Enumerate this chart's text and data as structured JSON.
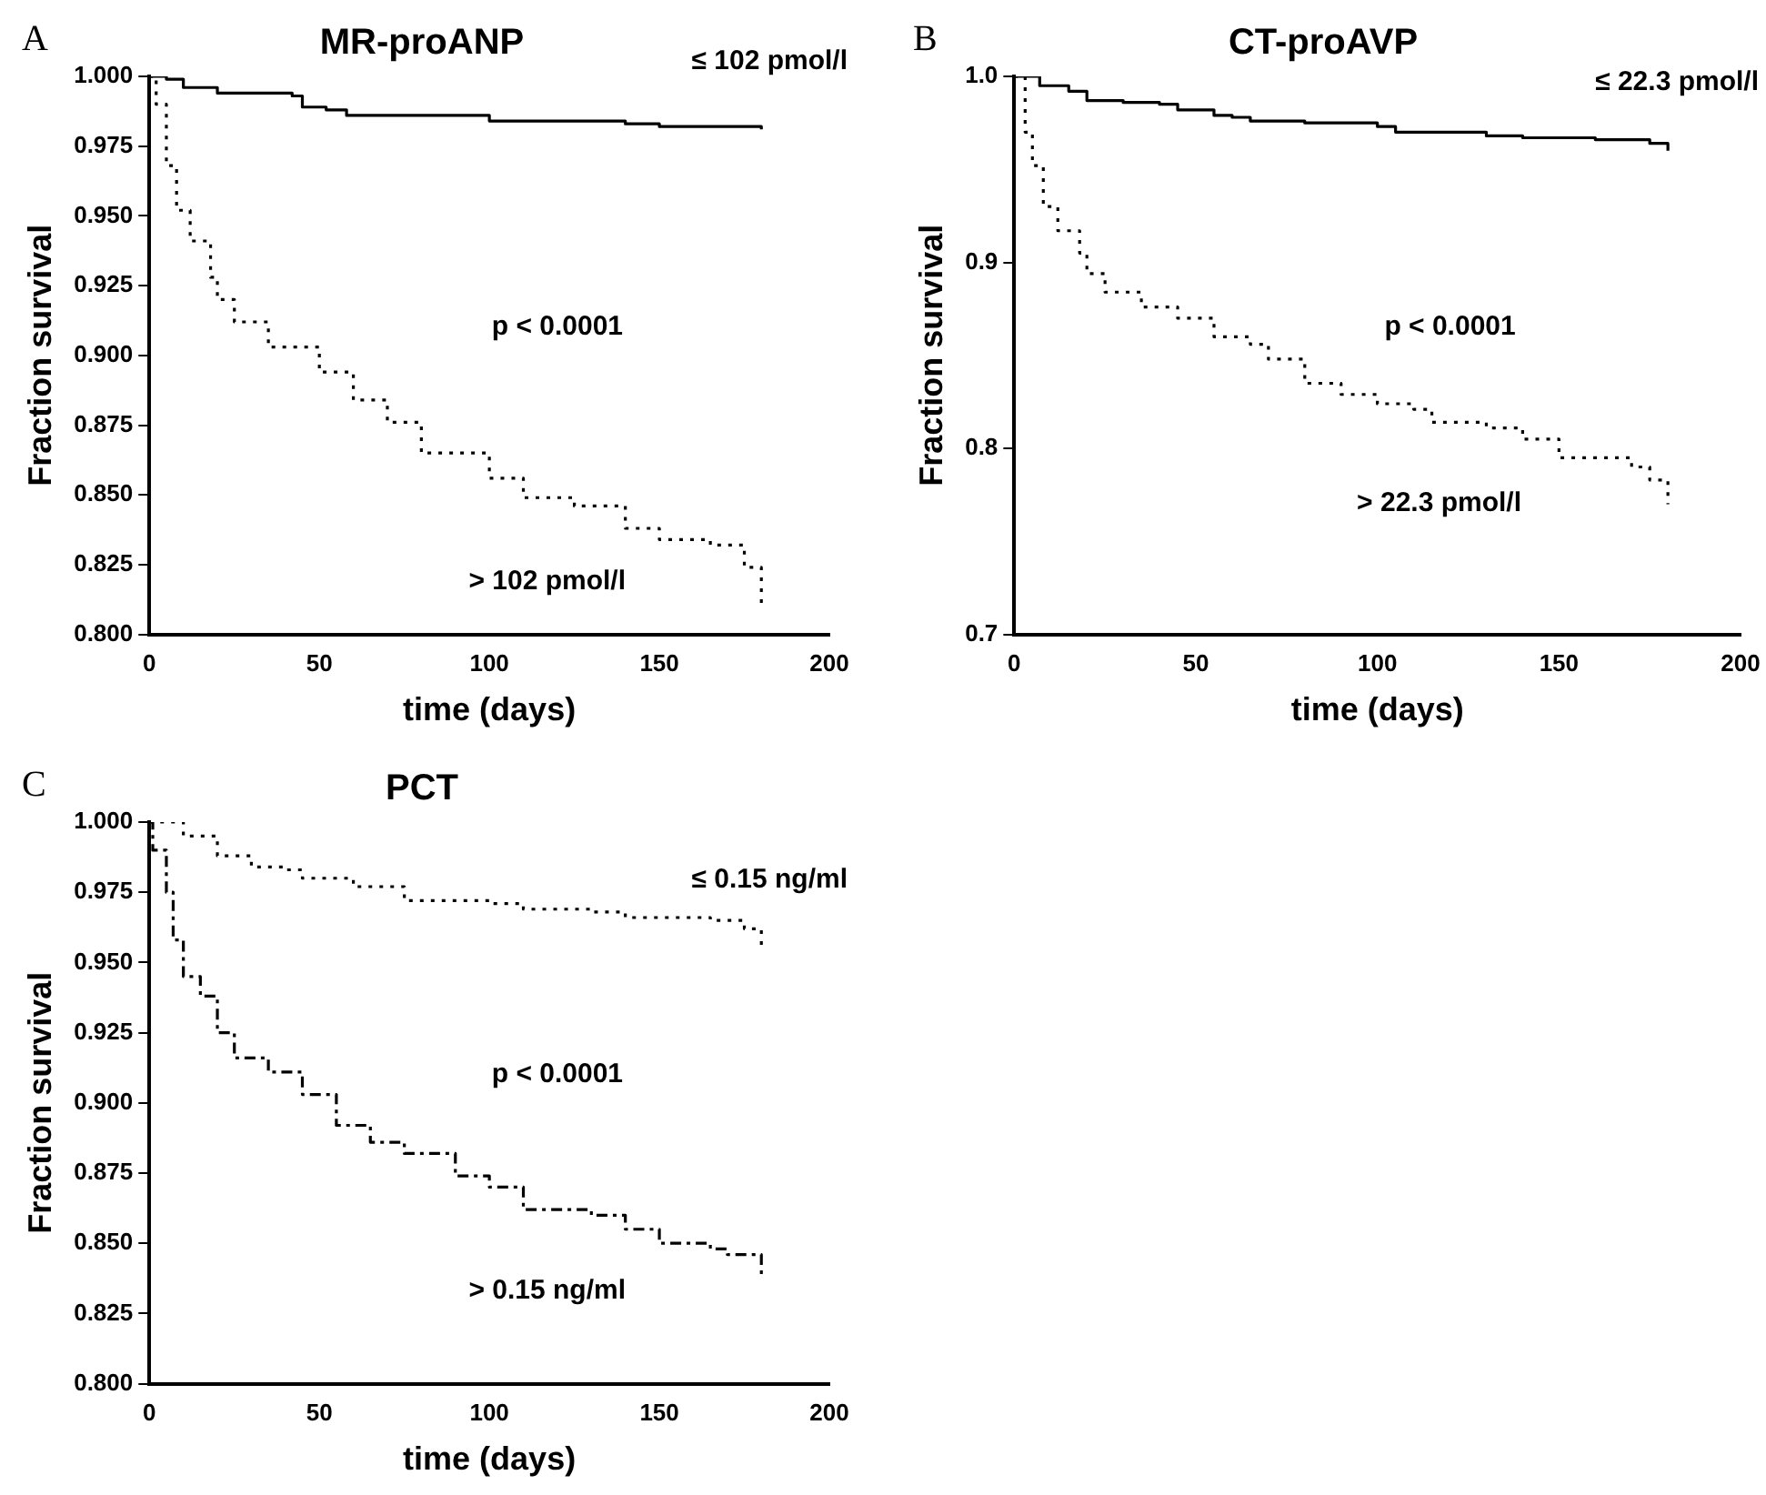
{
  "chart_data": [
    {
      "type": "step",
      "title": "MR-proANP",
      "xlabel": "time (days)",
      "ylabel": "Fraction survival",
      "annotations": [
        "A",
        "p < 0.0001"
      ],
      "xlim": [
        0,
        200
      ],
      "xticks": [
        0,
        50,
        100,
        150,
        200
      ],
      "ylim": [
        0.8,
        1.0
      ],
      "yticks": [
        {
          "value": 0.8,
          "label": "0.800"
        },
        {
          "value": 0.825,
          "label": "0.825"
        },
        {
          "value": 0.85,
          "label": "0.850"
        },
        {
          "value": 0.875,
          "label": "0.875"
        },
        {
          "value": 0.9,
          "label": "0.900"
        },
        {
          "value": 0.925,
          "label": "0.925"
        },
        {
          "value": 0.95,
          "label": "0.950"
        },
        {
          "value": 0.975,
          "label": "0.975"
        },
        {
          "value": 1.0,
          "label": "1.000"
        }
      ],
      "grid": false,
      "legend": false,
      "series": [
        {
          "name": "≤ 102 pmol/l",
          "color": "#000000",
          "line_style": "solid",
          "x": [
            0,
            5,
            10,
            20,
            42,
            45,
            52,
            58,
            100,
            140,
            150,
            180,
            180
          ],
          "values": [
            1.0,
            0.999,
            0.996,
            0.994,
            0.993,
            0.989,
            0.988,
            0.986,
            0.984,
            0.983,
            0.982,
            0.9815,
            0.981
          ]
        },
        {
          "name": "> 102 pmol/l",
          "color": "#000000",
          "line_style": "dotted",
          "x": [
            0,
            2,
            5,
            8,
            12,
            18,
            20,
            25,
            35,
            50,
            60,
            70,
            80,
            100,
            110,
            125,
            140,
            150,
            165,
            175,
            180,
            180
          ],
          "values": [
            1.0,
            0.99,
            0.968,
            0.952,
            0.941,
            0.928,
            0.92,
            0.912,
            0.903,
            0.894,
            0.884,
            0.876,
            0.865,
            0.856,
            0.849,
            0.846,
            0.838,
            0.834,
            0.832,
            0.824,
            0.819,
            0.811
          ]
        }
      ]
    },
    {
      "type": "step",
      "title": "CT-proAVP",
      "xlabel": "time (days)",
      "ylabel": "Fraction survival",
      "annotations": [
        "B",
        "p < 0.0001"
      ],
      "xlim": [
        0,
        200
      ],
      "xticks": [
        0,
        50,
        100,
        150,
        200
      ],
      "ylim": [
        0.7,
        1.0
      ],
      "yticks": [
        {
          "value": 0.7,
          "label": "0.7"
        },
        {
          "value": 0.8,
          "label": "0.8"
        },
        {
          "value": 0.9,
          "label": "0.9"
        },
        {
          "value": 1.0,
          "label": "1.0"
        }
      ],
      "grid": false,
      "legend": false,
      "series": [
        {
          "name": "≤ 22.3 pmol/l",
          "color": "#000000",
          "line_style": "solid",
          "x": [
            0,
            4,
            7,
            15,
            20,
            30,
            40,
            45,
            55,
            60,
            65,
            80,
            100,
            105,
            130,
            140,
            160,
            175,
            180,
            180
          ],
          "values": [
            1.0,
            1.0,
            0.995,
            0.992,
            0.987,
            0.986,
            0.985,
            0.982,
            0.979,
            0.978,
            0.976,
            0.975,
            0.973,
            0.97,
            0.968,
            0.967,
            0.966,
            0.964,
            0.963,
            0.96
          ]
        },
        {
          "name": "> 22.3 pmol/l",
          "color": "#000000",
          "line_style": "dotted",
          "x": [
            0,
            3,
            5,
            8,
            12,
            18,
            20,
            25,
            35,
            45,
            55,
            65,
            70,
            80,
            90,
            100,
            110,
            115,
            130,
            140,
            150,
            170,
            175,
            180,
            180
          ],
          "values": [
            1.0,
            0.97,
            0.952,
            0.93,
            0.917,
            0.905,
            0.894,
            0.884,
            0.876,
            0.87,
            0.86,
            0.856,
            0.848,
            0.835,
            0.829,
            0.824,
            0.821,
            0.814,
            0.811,
            0.805,
            0.795,
            0.79,
            0.783,
            0.776,
            0.77
          ]
        }
      ]
    },
    {
      "type": "step",
      "title": "PCT",
      "xlabel": "time (days)",
      "ylabel": "Fraction survival",
      "annotations": [
        "C",
        "p < 0.0001"
      ],
      "xlim": [
        0,
        200
      ],
      "xticks": [
        0,
        50,
        100,
        150,
        200
      ],
      "ylim": [
        0.8,
        1.0
      ],
      "yticks": [
        {
          "value": 0.8,
          "label": "0.800"
        },
        {
          "value": 0.825,
          "label": "0.825"
        },
        {
          "value": 0.85,
          "label": "0.850"
        },
        {
          "value": 0.875,
          "label": "0.875"
        },
        {
          "value": 0.9,
          "label": "0.900"
        },
        {
          "value": 0.925,
          "label": "0.925"
        },
        {
          "value": 0.95,
          "label": "0.950"
        },
        {
          "value": 0.975,
          "label": "0.975"
        },
        {
          "value": 1.0,
          "label": "1.000"
        }
      ],
      "grid": false,
      "legend": false,
      "series": [
        {
          "name": "≤ 0.15 ng/ml",
          "color": "#000000",
          "line_style": "dotted",
          "x": [
            0,
            10,
            20,
            30,
            40,
            45,
            60,
            75,
            100,
            110,
            130,
            140,
            165,
            175,
            180,
            180
          ],
          "values": [
            1.0,
            0.995,
            0.988,
            0.984,
            0.983,
            0.98,
            0.977,
            0.972,
            0.971,
            0.969,
            0.968,
            0.966,
            0.965,
            0.962,
            0.959,
            0.955
          ]
        },
        {
          "name": "> 0.15 ng/ml",
          "color": "#000000",
          "line_style": "dashed",
          "x": [
            0,
            1,
            5,
            7,
            10,
            15,
            20,
            25,
            35,
            45,
            55,
            65,
            75,
            90,
            100,
            110,
            130,
            140,
            150,
            165,
            170,
            180,
            180
          ],
          "values": [
            1.0,
            0.99,
            0.975,
            0.958,
            0.945,
            0.938,
            0.925,
            0.916,
            0.911,
            0.903,
            0.892,
            0.886,
            0.882,
            0.874,
            0.87,
            0.862,
            0.86,
            0.855,
            0.85,
            0.848,
            0.846,
            0.844,
            0.839
          ]
        }
      ]
    }
  ]
}
